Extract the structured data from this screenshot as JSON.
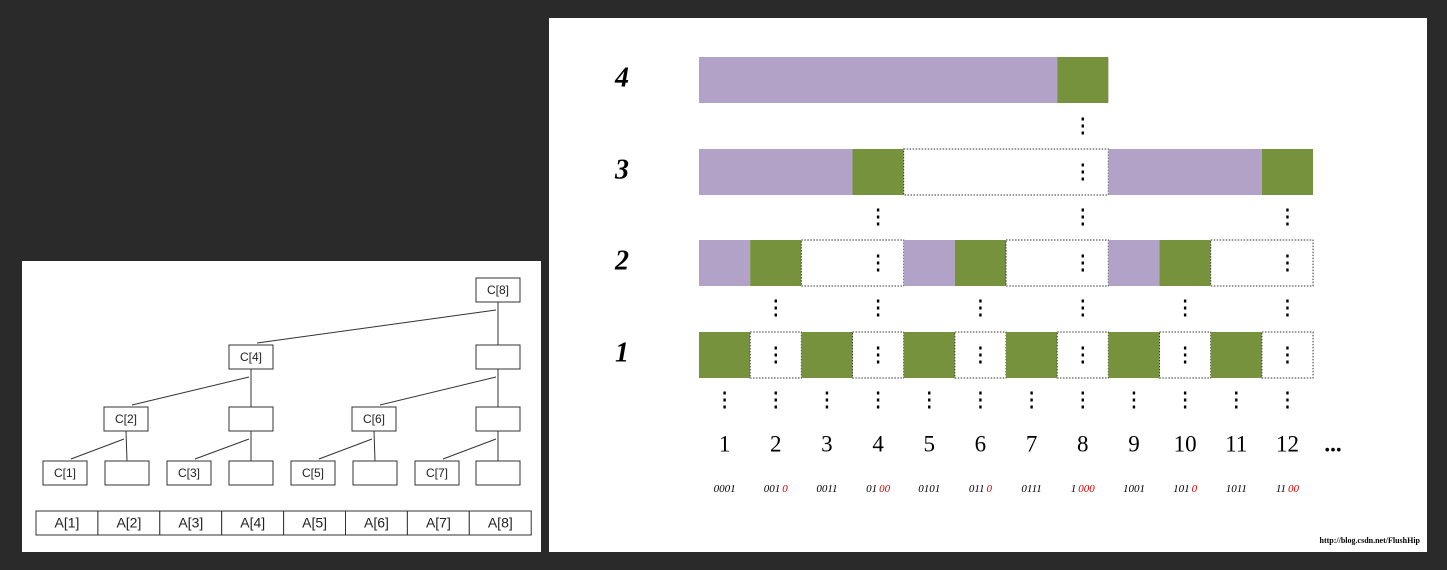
{
  "left_diagram": {
    "nodes": [
      "C[8]",
      "C[4]",
      "C[2]",
      "C[6]",
      "C[1]",
      "C[3]",
      "C[5]",
      "C[7]"
    ],
    "array": [
      "A[1]",
      "A[2]",
      "A[3]",
      "A[4]",
      "A[5]",
      "A[6]",
      "A[7]",
      "A[8]"
    ]
  },
  "right_diagram": {
    "levels": [
      "4",
      "3",
      "2",
      "1"
    ],
    "indices": [
      "1",
      "2",
      "3",
      "4",
      "5",
      "6",
      "7",
      "8",
      "9",
      "10",
      "11",
      "12"
    ],
    "ellipsis": "...",
    "binary": [
      {
        "black": "0001"
      },
      {
        "black": "001",
        "red": "0"
      },
      {
        "black": "0011"
      },
      {
        "black": "01",
        "red": "00"
      },
      {
        "black": "0101"
      },
      {
        "black": "011",
        "red": "0"
      },
      {
        "black": "0111"
      },
      {
        "black": "1",
        "red": "000"
      },
      {
        "black": "1001"
      },
      {
        "black": "101",
        "red": "0"
      },
      {
        "black": "1011"
      },
      {
        "black": "11",
        "red": "00"
      }
    ],
    "watermark": "http://blog.csdn.net/FlushHip"
  }
}
